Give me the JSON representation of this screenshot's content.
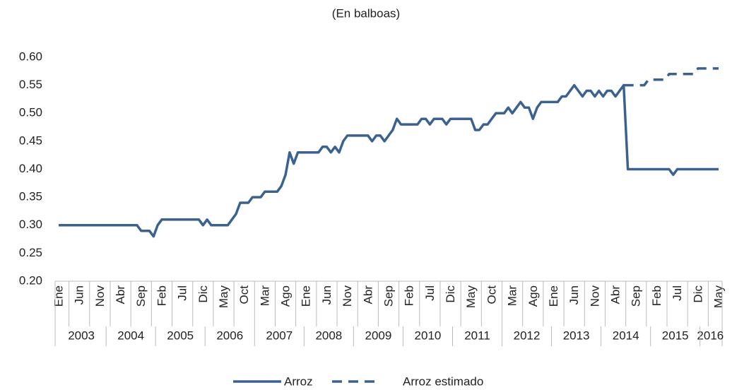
{
  "chart_data": {
    "type": "line",
    "title": "(En balboas)",
    "categories": [
      "Ene",
      null,
      null,
      null,
      null,
      "Jun",
      null,
      null,
      null,
      null,
      "Nov",
      null,
      null,
      null,
      null,
      "Abr",
      null,
      null,
      null,
      null,
      "Sep",
      null,
      null,
      null,
      null,
      "Feb",
      null,
      null,
      null,
      null,
      "Jul",
      null,
      null,
      null,
      null,
      "Dic",
      null,
      null,
      null,
      null,
      "May",
      null,
      null,
      null,
      null,
      "Oct",
      null,
      null,
      null,
      null,
      "Mar",
      null,
      null,
      null,
      null,
      "Ago",
      null,
      null,
      null,
      null,
      "Ene",
      null,
      null,
      null,
      null,
      "Jun",
      null,
      null,
      null,
      null,
      "Nov",
      null,
      null,
      null,
      null,
      "Abr",
      null,
      null,
      null,
      null,
      "Sep",
      null,
      null,
      null,
      null,
      "Feb",
      null,
      null,
      null,
      null,
      "Jul",
      null,
      null,
      null,
      null,
      "Dic",
      null,
      null,
      null,
      null,
      "May",
      null,
      null,
      null,
      null,
      "Oct",
      null,
      null,
      null,
      null,
      "Mar",
      null,
      null,
      null,
      null,
      "Ago",
      null,
      null,
      null,
      null,
      "Ene",
      null,
      null,
      null,
      null,
      "Jun",
      null,
      null,
      null,
      null,
      "Nov",
      null,
      null,
      null,
      null,
      "Abr",
      null,
      null,
      null,
      null,
      "Sep",
      null,
      null,
      null,
      null,
      "Feb",
      null,
      null,
      null,
      null,
      "Jul",
      null,
      null,
      null,
      null,
      "Dic",
      null,
      null,
      null,
      null,
      "May"
    ],
    "years": [
      "2003",
      "2004",
      "2005",
      "2006",
      "2007",
      "2008",
      "2009",
      "2010",
      "2011",
      "2012",
      "2013",
      "2014",
      "2015",
      "2016"
    ],
    "series": [
      {
        "name": "Arroz",
        "color": "#3b6191",
        "dash": false,
        "values": [
          0.3,
          0.3,
          0.3,
          0.3,
          0.3,
          0.3,
          0.3,
          0.3,
          0.3,
          0.3,
          0.3,
          0.3,
          0.3,
          0.3,
          0.3,
          0.3,
          0.3,
          0.3,
          0.3,
          0.3,
          0.29,
          0.29,
          0.29,
          0.28,
          0.3,
          0.31,
          0.31,
          0.31,
          0.31,
          0.31,
          0.31,
          0.31,
          0.31,
          0.31,
          0.31,
          0.3,
          0.31,
          0.3,
          0.3,
          0.3,
          0.3,
          0.3,
          0.31,
          0.32,
          0.34,
          0.34,
          0.34,
          0.35,
          0.35,
          0.35,
          0.36,
          0.36,
          0.36,
          0.36,
          0.37,
          0.39,
          0.43,
          0.41,
          0.43,
          0.43,
          0.43,
          0.43,
          0.43,
          0.43,
          0.44,
          0.44,
          0.43,
          0.44,
          0.43,
          0.45,
          0.46,
          0.46,
          0.46,
          0.46,
          0.46,
          0.46,
          0.45,
          0.46,
          0.46,
          0.45,
          0.46,
          0.47,
          0.49,
          0.48,
          0.48,
          0.48,
          0.48,
          0.48,
          0.49,
          0.49,
          0.48,
          0.49,
          0.49,
          0.49,
          0.48,
          0.49,
          0.49,
          0.49,
          0.49,
          0.49,
          0.49,
          0.47,
          0.47,
          0.48,
          0.48,
          0.49,
          0.5,
          0.5,
          0.5,
          0.51,
          0.5,
          0.51,
          0.52,
          0.51,
          0.51,
          0.49,
          0.51,
          0.52,
          0.52,
          0.52,
          0.52,
          0.52,
          0.53,
          0.53,
          0.54,
          0.55,
          0.54,
          0.53,
          0.54,
          0.54,
          0.53,
          0.54,
          0.53,
          0.54,
          0.54,
          0.53,
          0.54,
          0.55,
          0.4,
          0.4,
          0.4,
          0.4,
          0.4,
          0.4,
          0.4,
          0.4,
          0.4,
          0.4,
          0.4,
          0.39,
          0.4,
          0.4,
          0.4,
          0.4,
          0.4,
          0.4,
          0.4,
          0.4,
          0.4,
          0.4,
          0.4
        ]
      },
      {
        "name": "Arroz estimado",
        "color": "#3b6191",
        "dash": true,
        "values": [
          null,
          null,
          null,
          null,
          null,
          null,
          null,
          null,
          null,
          null,
          null,
          null,
          null,
          null,
          null,
          null,
          null,
          null,
          null,
          null,
          null,
          null,
          null,
          null,
          null,
          null,
          null,
          null,
          null,
          null,
          null,
          null,
          null,
          null,
          null,
          null,
          null,
          null,
          null,
          null,
          null,
          null,
          null,
          null,
          null,
          null,
          null,
          null,
          null,
          null,
          null,
          null,
          null,
          null,
          null,
          null,
          null,
          null,
          null,
          null,
          null,
          null,
          null,
          null,
          null,
          null,
          null,
          null,
          null,
          null,
          null,
          null,
          null,
          null,
          null,
          null,
          null,
          null,
          null,
          null,
          null,
          null,
          null,
          null,
          null,
          null,
          null,
          null,
          null,
          null,
          null,
          null,
          null,
          null,
          null,
          null,
          null,
          null,
          null,
          null,
          null,
          null,
          null,
          null,
          null,
          null,
          null,
          null,
          null,
          null,
          null,
          null,
          null,
          null,
          null,
          null,
          null,
          null,
          null,
          null,
          null,
          null,
          null,
          null,
          null,
          null,
          null,
          null,
          null,
          null,
          null,
          null,
          null,
          null,
          null,
          null,
          null,
          0.55,
          0.55,
          0.55,
          0.55,
          0.55,
          0.55,
          0.56,
          0.56,
          0.56,
          0.56,
          0.56,
          0.57,
          0.57,
          0.57,
          0.57,
          0.57,
          0.57,
          0.57,
          0.58,
          0.58,
          0.58,
          0.58,
          0.58,
          0.58
        ]
      }
    ],
    "ylim": [
      0.2,
      0.6
    ],
    "yticks": [
      {
        "value": 0.2,
        "label": "0.20"
      },
      0.25,
      {
        "value": 0.3,
        "label": "0.30"
      },
      0.35,
      {
        "value": 0.4,
        "label": "0.40"
      },
      0.45,
      {
        "value": 0.5,
        "label": "0.50"
      },
      0.55,
      {
        "value": 0.6,
        "label": "0.60"
      }
    ],
    "grid": false,
    "legend": "bottom"
  }
}
